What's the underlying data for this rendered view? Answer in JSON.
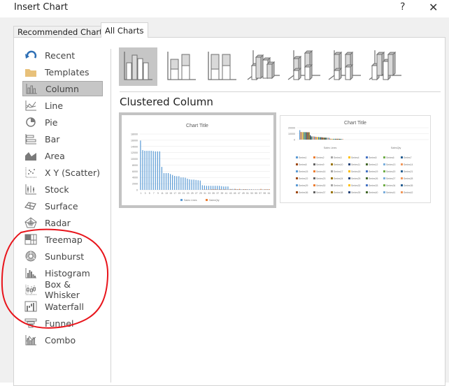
{
  "dialog": {
    "title": "Insert Chart",
    "help_label": "?",
    "close_label": "✕"
  },
  "tabs": [
    {
      "label": "Recommended Charts",
      "active": false
    },
    {
      "label": "All Charts",
      "active": true
    }
  ],
  "sidebar": {
    "items": [
      {
        "label": "Recent",
        "icon": "recent-icon"
      },
      {
        "label": "Templates",
        "icon": "folder-icon"
      },
      {
        "label": "Column",
        "icon": "column-chart-icon",
        "selected": true
      },
      {
        "label": "Line",
        "icon": "line-chart-icon"
      },
      {
        "label": "Pie",
        "icon": "pie-chart-icon"
      },
      {
        "label": "Bar",
        "icon": "bar-chart-icon"
      },
      {
        "label": "Area",
        "icon": "area-chart-icon"
      },
      {
        "label": "X Y (Scatter)",
        "icon": "scatter-chart-icon"
      },
      {
        "label": "Stock",
        "icon": "stock-chart-icon"
      },
      {
        "label": "Surface",
        "icon": "surface-chart-icon"
      },
      {
        "label": "Radar",
        "icon": "radar-chart-icon"
      },
      {
        "label": "Treemap",
        "icon": "treemap-icon"
      },
      {
        "label": "Sunburst",
        "icon": "sunburst-icon"
      },
      {
        "label": "Histogram",
        "icon": "histogram-icon"
      },
      {
        "label": "Box & Whisker",
        "icon": "box-whisker-icon"
      },
      {
        "label": "Waterfall",
        "icon": "waterfall-icon"
      },
      {
        "label": "Funnel",
        "icon": "funnel-icon"
      },
      {
        "label": "Combo",
        "icon": "combo-chart-icon"
      }
    ]
  },
  "subtypes": [
    "clustered-column",
    "stacked-column",
    "100-stacked-column",
    "3d-clustered-column",
    "3d-stacked-column",
    "3d-100-stacked-column",
    "3d-column"
  ],
  "selected_subtype_label": "Clustered Column",
  "annotation_color": "#e8141b",
  "chart_data": [
    {
      "type": "bar",
      "title": "Chart Title",
      "ylim": [
        0,
        18000
      ],
      "yticks": [
        "0",
        "2000",
        "4000",
        "6000",
        "8000",
        "10000",
        "12000",
        "14000",
        "16000",
        "18000"
      ],
      "xticks": [
        "1",
        "3",
        "5",
        "7",
        "9",
        "11",
        "13",
        "15",
        "17",
        "19",
        "21",
        "23",
        "25",
        "27",
        "29",
        "31",
        "33",
        "35",
        "37",
        "39",
        "41",
        "43",
        "45",
        "47",
        "49",
        "51",
        "53",
        "55",
        "57",
        "59",
        "61"
      ],
      "series": [
        {
          "name": "Sales Lines",
          "color": "#5b9bd5",
          "values": [
            15900,
            12800,
            12600,
            12600,
            12600,
            12600,
            12500,
            12400,
            12400,
            12400,
            7400,
            5400,
            5400,
            5400,
            5100,
            4800,
            4500,
            4400,
            4400,
            4000,
            4000,
            3900,
            3600,
            3400,
            3300,
            3300,
            3200,
            3100,
            3000,
            1500,
            1400,
            1300,
            1300,
            1300,
            1300,
            1300,
            1300,
            1300,
            1200,
            1100,
            1100,
            1100,
            300,
            300,
            300,
            200,
            200,
            200,
            200,
            200,
            200,
            200,
            200,
            150,
            150,
            150,
            150,
            150,
            150,
            150,
            150
          ]
        },
        {
          "name": "SalesQty",
          "color": "#ed7d31",
          "values": [
            0,
            0,
            0,
            0,
            0,
            0,
            0,
            0,
            0,
            0,
            0,
            0,
            0,
            0,
            0,
            0,
            0,
            0,
            0,
            0,
            0,
            0,
            0,
            0,
            0,
            0,
            0,
            0,
            0,
            100,
            100,
            100,
            100,
            200,
            200,
            200,
            100,
            200,
            100,
            200,
            100,
            100,
            200,
            100,
            300,
            200,
            300,
            100,
            200,
            200,
            100,
            100,
            100,
            100,
            100,
            100,
            300,
            100,
            200,
            200,
            200
          ]
        }
      ]
    },
    {
      "type": "bar",
      "title": "Chart Title",
      "ylim": [
        0,
        20000
      ],
      "yticks": [
        "0",
        "10000",
        "20000"
      ],
      "categories": [
        "Sales Lines",
        "SalesQty"
      ],
      "series_count": 42,
      "series_prefix": "Series"
    }
  ]
}
